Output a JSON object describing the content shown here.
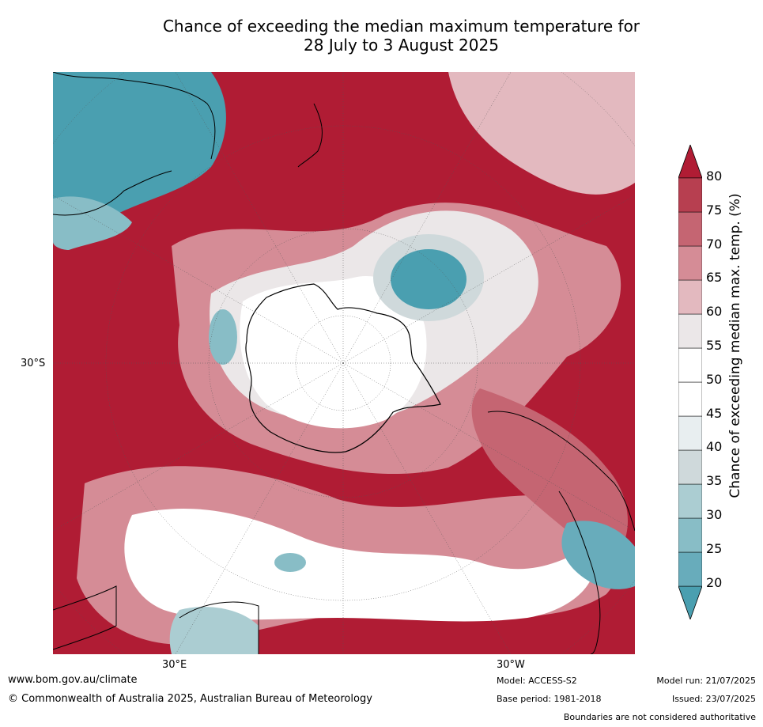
{
  "title": {
    "line1": "Chance of exceeding the median maximum temperature for",
    "line2": "28 July to 3 August 2025"
  },
  "map": {
    "projection": "south-polar stereographic",
    "lat_label": "30°S",
    "lon_labels": [
      "30°E",
      "30°W"
    ]
  },
  "colorbar": {
    "title": "Chance of exceeding median max. temp. (%)",
    "ticks": [
      "20",
      "25",
      "30",
      "35",
      "40",
      "45",
      "50",
      "55",
      "60",
      "65",
      "70",
      "75",
      "80"
    ],
    "band_colors": [
      "#4a9fb0",
      "#68acbb",
      "#88bdc6",
      "#abcdd2",
      "#cfd9db",
      "#e8eef0",
      "#ffffff",
      "#ffffff",
      "#ebe7e8",
      "#e3b9bf",
      "#d58c96",
      "#c56572",
      "#b73f50",
      "#b01c34"
    ],
    "extend": "both"
  },
  "footer": {
    "website": "www.bom.gov.au/climate",
    "copyright": "© Commonwealth of Australia 2025, Australian Bureau of Meteorology",
    "model": "Model: ACCESS-S2",
    "base_period": "Base period: 1981-2018",
    "model_run": "Model run: 21/07/2025",
    "issued": "Issued: 23/07/2025",
    "disclaimer": "Boundaries are not considered authoritative"
  }
}
